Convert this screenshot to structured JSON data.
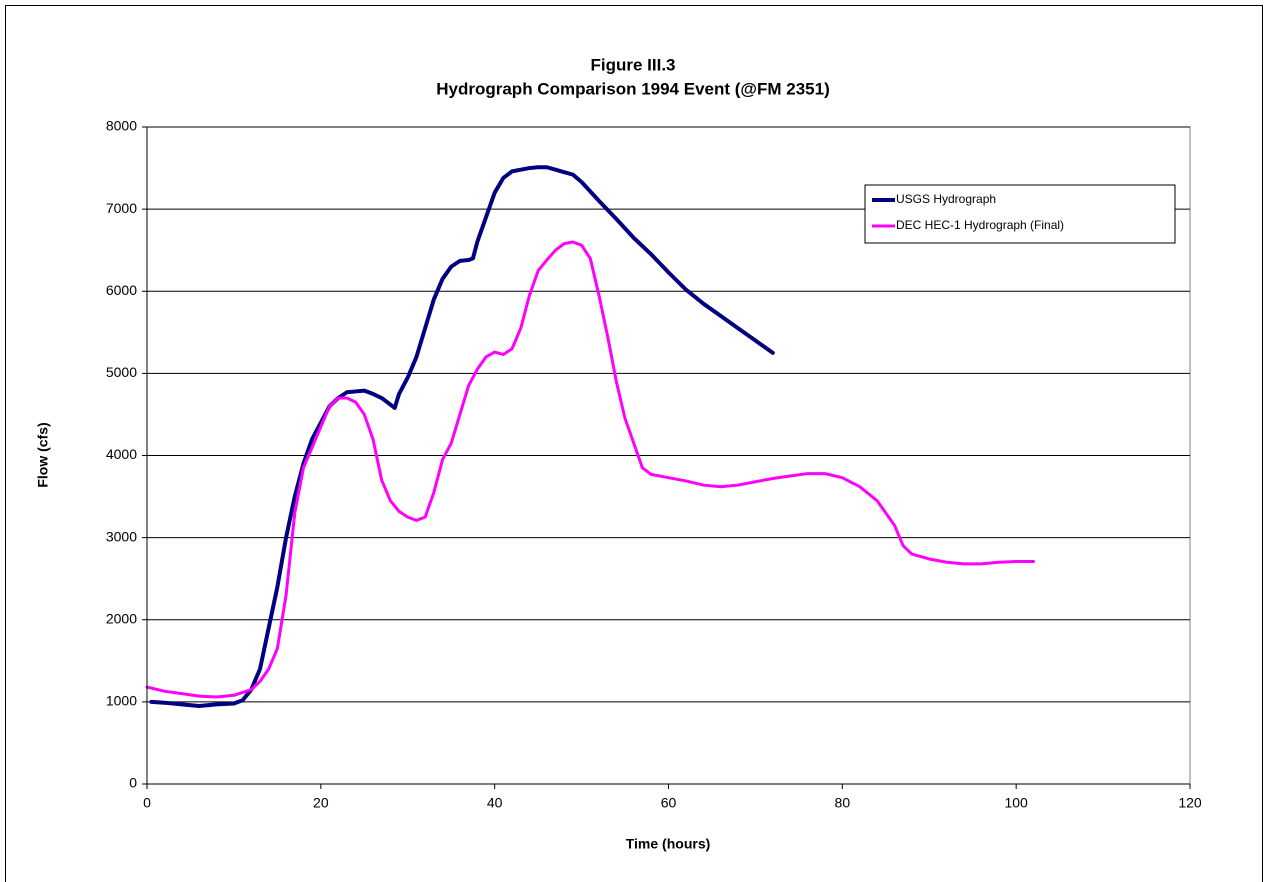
{
  "chart_data": {
    "type": "line",
    "title": "Figure III.3",
    "subtitle": "Hydrograph Comparison 1994 Event (@FM 2351)",
    "x_label": "Time (hours)",
    "y_label": "Flow (cfs)",
    "xlim": [
      0,
      120
    ],
    "xticks": [
      0,
      20,
      40,
      60,
      80,
      100,
      120
    ],
    "ylim": [
      0,
      8000
    ],
    "yticks": [
      0,
      1000,
      2000,
      3000,
      4000,
      5000,
      6000,
      7000,
      8000
    ],
    "grid": true,
    "legend": "upper right",
    "series": [
      {
        "name": "USGS Hydrograph",
        "color": "#000080",
        "x": [
          0.5,
          2,
          4,
          6,
          8,
          10,
          11,
          12,
          13,
          14,
          15,
          16,
          17,
          18,
          19,
          20,
          21,
          22,
          23,
          24,
          25,
          26,
          27,
          28,
          28.5,
          29,
          30,
          31,
          32,
          33,
          34,
          35,
          36,
          37,
          37.5,
          38,
          39,
          40,
          41,
          42,
          43,
          44,
          45,
          46,
          47,
          48,
          49,
          50,
          52,
          54,
          56,
          58,
          60,
          62,
          64,
          66,
          68,
          70,
          72
        ],
        "values": [
          1000,
          990,
          970,
          950,
          970,
          980,
          1020,
          1150,
          1400,
          1900,
          2400,
          3000,
          3500,
          3900,
          4200,
          4400,
          4600,
          4700,
          4770,
          4780,
          4790,
          4750,
          4700,
          4620,
          4580,
          4750,
          4950,
          5200,
          5550,
          5900,
          6150,
          6300,
          6370,
          6380,
          6400,
          6600,
          6900,
          7200,
          7380,
          7460,
          7480,
          7500,
          7510,
          7510,
          7480,
          7450,
          7420,
          7330,
          7100,
          6880,
          6650,
          6450,
          6230,
          6020,
          5850,
          5700,
          5550,
          5400,
          5250
        ]
      },
      {
        "name": "DEC HEC-1 Hydrograph (Final)",
        "color": "#ff00ff",
        "x": [
          0,
          2,
          4,
          6,
          8,
          10,
          12,
          13,
          14,
          15,
          16,
          17,
          18,
          19,
          20,
          21,
          22,
          23,
          24,
          25,
          26,
          27,
          28,
          29,
          30,
          31,
          32,
          33,
          34,
          35,
          36,
          37,
          38,
          39,
          40,
          41,
          42,
          43,
          44,
          45,
          46,
          47,
          48,
          49,
          50,
          51,
          52,
          53,
          54,
          55,
          56,
          57,
          58,
          60,
          62,
          64,
          66,
          68,
          70,
          72,
          74,
          76,
          78,
          80,
          82,
          84,
          86,
          87,
          88,
          90,
          92,
          94,
          96,
          98,
          100,
          102
        ],
        "values": [
          1180,
          1130,
          1100,
          1070,
          1060,
          1080,
          1150,
          1250,
          1400,
          1650,
          2300,
          3300,
          3850,
          4100,
          4350,
          4600,
          4700,
          4700,
          4650,
          4500,
          4200,
          3700,
          3450,
          3320,
          3250,
          3210,
          3250,
          3550,
          3950,
          4150,
          4500,
          4850,
          5050,
          5200,
          5260,
          5230,
          5300,
          5550,
          5950,
          6250,
          6380,
          6500,
          6580,
          6600,
          6560,
          6400,
          5950,
          5450,
          4900,
          4450,
          4150,
          3850,
          3770,
          3730,
          3690,
          3640,
          3620,
          3640,
          3680,
          3720,
          3750,
          3780,
          3780,
          3730,
          3620,
          3450,
          3150,
          2900,
          2800,
          2740,
          2700,
          2680,
          2680,
          2700,
          2710,
          2710
        ]
      }
    ]
  }
}
